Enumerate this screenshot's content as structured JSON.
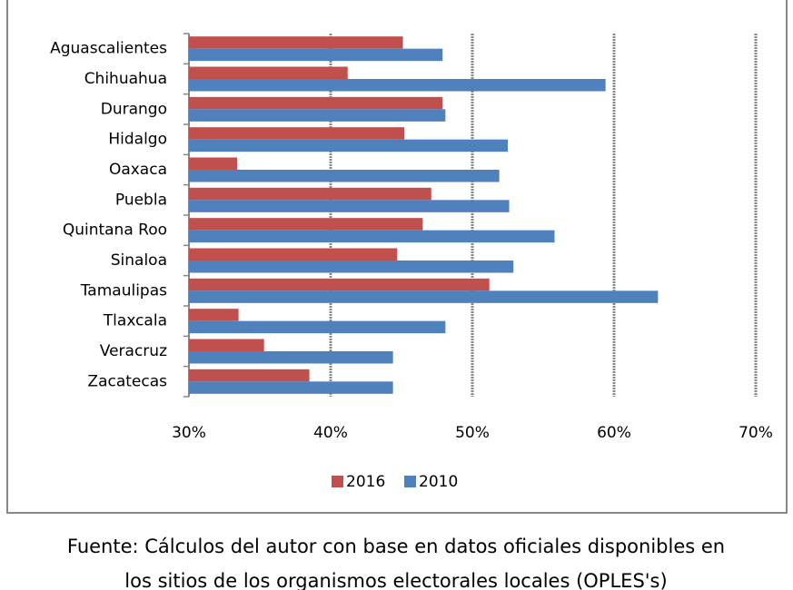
{
  "chart_data": {
    "type": "bar",
    "orientation": "horizontal",
    "categories": [
      "Aguascalientes",
      "Chihuahua",
      "Durango",
      "Hidalgo",
      "Oaxaca",
      "Puebla",
      "Quintana Roo",
      "Sinaloa",
      "Tamaulipas",
      "Tlaxcala",
      "Veracruz",
      "Zacatecas"
    ],
    "series": [
      {
        "name": "2016",
        "color": "#c0504d",
        "values": [
          45.1,
          41.2,
          47.9,
          45.2,
          33.4,
          47.1,
          46.5,
          44.7,
          51.2,
          33.5,
          35.3,
          38.5
        ]
      },
      {
        "name": "2010",
        "color": "#4f81bd",
        "values": [
          47.9,
          59.4,
          48.1,
          52.5,
          51.9,
          52.6,
          55.8,
          52.9,
          63.1,
          48.1,
          44.4,
          44.4
        ]
      }
    ],
    "xlim": [
      30,
      70
    ],
    "xticks": [
      {
        "value": 30,
        "label": "30%"
      },
      {
        "value": 40,
        "label": "40%"
      },
      {
        "value": 50,
        "label": "50%"
      },
      {
        "value": 60,
        "label": "60%"
      },
      {
        "value": 70,
        "label": "70%"
      }
    ],
    "grid": true,
    "legend": "bottom",
    "caption": [
      "Fuente: Cálculos del autor con base en datos oficiales disponibles en",
      "los sitios de los organismos electorales locales (OPLES's)"
    ]
  }
}
